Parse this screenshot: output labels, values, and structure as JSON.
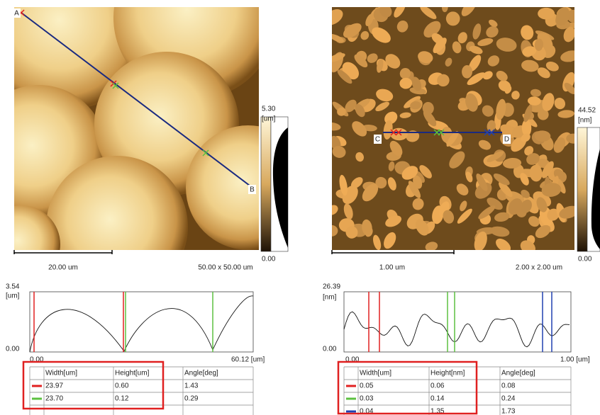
{
  "left": {
    "markers": [
      "A",
      "B"
    ],
    "colorbar": {
      "max": "5.30",
      "unit": "[um]",
      "min": "0.00"
    },
    "scale_bar": "20.00 um",
    "scan_size": "50.00 x 50.00 um",
    "profile": {
      "y_max": "3.54",
      "y_unit": "[um]",
      "y_min": "0.00",
      "x_min": "0.00",
      "x_max": "60.12 [um]"
    },
    "table": {
      "header": [
        "Width[um]",
        "Height[um]",
        "Angle[deg]"
      ],
      "rows": [
        [
          "23.97",
          "0.60",
          "1.43"
        ],
        [
          "23.70",
          "0.12",
          "0.29"
        ]
      ]
    }
  },
  "right": {
    "markers": [
      "C",
      "D"
    ],
    "colorbar": {
      "max": "44.52",
      "unit": "[nm]",
      "min": "0.00"
    },
    "scale_bar": "1.00 um",
    "scan_size": "2.00 x 2.00 um",
    "profile": {
      "y_max": "26.39",
      "y_unit": "[nm]",
      "y_min": "0.00",
      "x_min": "0.00",
      "x_max": "1.00 [um]"
    },
    "table": {
      "header": [
        "Width[um]",
        "Height[nm]",
        "Angle[deg]"
      ],
      "rows": [
        [
          "0.05",
          "0.06",
          "0.08"
        ],
        [
          "0.03",
          "0.14",
          "0.24"
        ],
        [
          "0.04",
          "1.35",
          "1.73"
        ]
      ]
    }
  }
}
